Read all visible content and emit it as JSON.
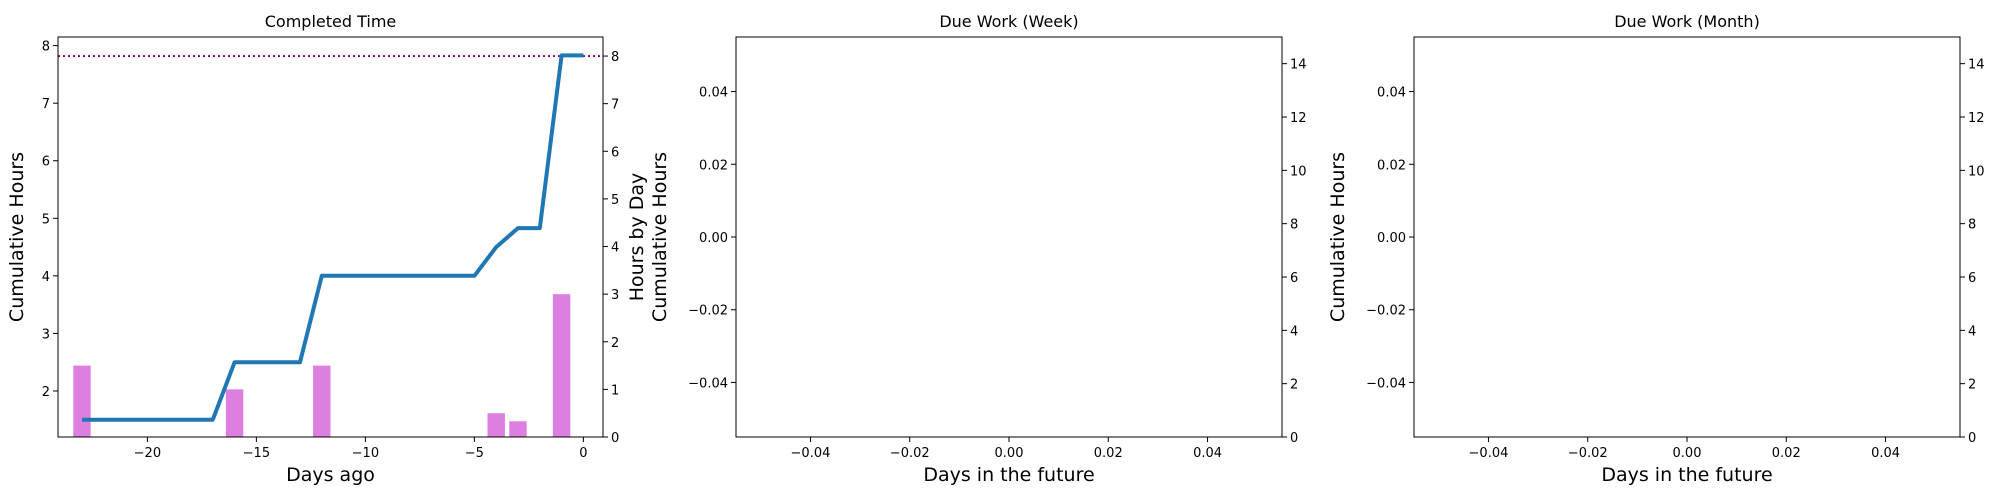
{
  "chart_data": [
    {
      "type": "bar+line",
      "title": "Completed Time",
      "xlabel": "Days ago",
      "ylabel": "Cumulative Hours",
      "ylabel_right": "Hours by Day",
      "xlim": [
        -24.1,
        0.9
      ],
      "ylim": [
        1.2,
        8.15
      ],
      "ylim_right": [
        0,
        8.4
      ],
      "xticks": [
        -20,
        -15,
        -10,
        -5,
        0
      ],
      "xtick_labels": [
        "−20",
        "−15",
        "−10",
        "−5",
        "0"
      ],
      "yticks": [
        2,
        3,
        4,
        5,
        6,
        7,
        8
      ],
      "yticks_right": [
        0,
        1,
        2,
        3,
        4,
        5,
        6,
        7,
        8
      ],
      "bars": {
        "name": "Hours by Day",
        "color": "#dd7fe0",
        "x": [
          -23,
          -16,
          -12,
          -4,
          -3,
          -1
        ],
        "values": [
          1.5,
          1.0,
          1.5,
          0.5,
          0.33,
          3.0
        ]
      },
      "line": {
        "name": "Cumulative Hours",
        "color": "#1f77b4",
        "x": [
          -23,
          -17,
          -16,
          -13,
          -12,
          -5,
          -4,
          -3,
          -2,
          -1,
          0
        ],
        "values": [
          1.5,
          1.5,
          2.5,
          2.5,
          4.0,
          4.0,
          4.5,
          4.83,
          4.83,
          7.83,
          7.83
        ]
      },
      "hline": {
        "axis": "right",
        "value": 8,
        "color": "#800080",
        "style": "dotted"
      },
      "grid": false
    },
    {
      "type": "line",
      "title": "Due Work (Week)",
      "xlabel": "Days in the future",
      "ylabel": "Cumulative Hours",
      "xlim": [
        -0.055,
        0.055
      ],
      "ylim": [
        -0.055,
        0.055
      ],
      "ylim_right": [
        0,
        15
      ],
      "xticks": [
        -0.04,
        -0.02,
        0.0,
        0.02,
        0.04
      ],
      "xtick_labels": [
        "−0.04",
        "−0.02",
        "0.00",
        "0.02",
        "0.04"
      ],
      "yticks": [
        -0.04,
        -0.02,
        0.0,
        0.02,
        0.04
      ],
      "ytick_labels": [
        "−0.04",
        "−0.02",
        "0.00",
        "0.02",
        "0.04"
      ],
      "yticks_right": [
        0,
        2,
        4,
        6,
        8,
        10,
        12,
        14
      ],
      "series": [],
      "grid": false
    },
    {
      "type": "line",
      "title": "Due Work (Month)",
      "xlabel": "Days in the future",
      "ylabel": "Cumulative Hours",
      "xlim": [
        -0.055,
        0.055
      ],
      "ylim": [
        -0.055,
        0.055
      ],
      "ylim_right": [
        0,
        15
      ],
      "xticks": [
        -0.04,
        -0.02,
        0.0,
        0.02,
        0.04
      ],
      "xtick_labels": [
        "−0.04",
        "−0.02",
        "0.00",
        "0.02",
        "0.04"
      ],
      "yticks": [
        -0.04,
        -0.02,
        0.0,
        0.02,
        0.04
      ],
      "ytick_labels": [
        "−0.04",
        "−0.02",
        "0.00",
        "0.02",
        "0.04"
      ],
      "yticks_right": [
        0,
        2,
        4,
        6,
        8,
        10,
        12,
        14
      ],
      "series": [],
      "grid": false
    }
  ]
}
